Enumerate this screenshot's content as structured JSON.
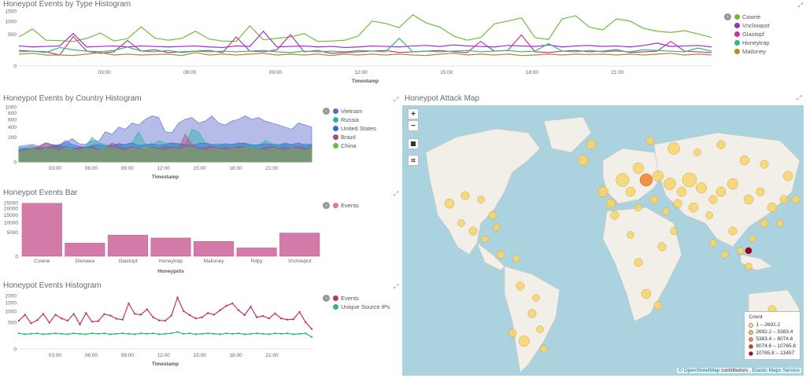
{
  "panels": {
    "type_hist": {
      "title": "Honeypot Events by Type Histogram"
    },
    "country_hist": {
      "title": "Honeypot Events by Country Histogram"
    },
    "bar": {
      "title": "Honeypot Events Bar"
    },
    "events_hist": {
      "title": "Honeypot Events Histogram"
    },
    "map": {
      "title": "Honeypot Attack Map"
    }
  },
  "map": {
    "zoom_in": "+",
    "zoom_out": "−",
    "legend_title": "Count",
    "legend": [
      {
        "label": "1 – 2692.2",
        "color": "#fde68a"
      },
      {
        "label": "2692.2 – 5383.4",
        "color": "#fbbf5e"
      },
      {
        "label": "5383.4 – 8074.6",
        "color": "#f08a3c"
      },
      {
        "label": "8074.6 – 10765.8",
        "color": "#d73027"
      },
      {
        "label": "10765.8 – 13457",
        "color": "#a50026"
      }
    ],
    "attribution_link": "© OpenStreetMap",
    "attribution_text": " contributors , ",
    "attribution_link2": "Elastic Maps Service"
  },
  "chart_data": [
    {
      "id": "type_hist",
      "type": "line",
      "title": "Honeypot Events by Type Histogram",
      "xlabel": "Timestamp",
      "ylabel": "",
      "y_scale": "sqrt",
      "ylim": [
        0,
        1500
      ],
      "yticks": [
        "1500",
        "1000",
        "500",
        "0"
      ],
      "x_ticks": [
        "03:00",
        "06:00",
        "09:00",
        "12:00",
        "15:00",
        "18:00",
        "21:00"
      ],
      "series": [
        {
          "name": "Cowrie",
          "color": "#6cbd3c",
          "values": [
            420,
            680,
            330,
            320,
            300,
            380,
            540,
            310,
            370,
            760,
            390,
            330,
            380,
            600,
            360,
            310,
            300,
            800,
            340,
            380,
            420,
            520,
            300,
            310,
            330,
            450,
            1000,
            900,
            730,
            1300,
            920,
            750,
            450,
            330,
            400,
            880,
            1000,
            1150,
            400,
            350,
            1100,
            1250,
            750,
            650,
            1100,
            1000,
            700,
            600,
            560,
            620,
            510,
            400
          ]
        },
        {
          "name": "Vnclowpot",
          "color": "#9a2fc0",
          "values": [
            200,
            180,
            190,
            200,
            520,
            180,
            190,
            200,
            180,
            200,
            190,
            180,
            190,
            200,
            180,
            170,
            200,
            190,
            600,
            180,
            190,
            200,
            180,
            190,
            170,
            180,
            200,
            190,
            180,
            200,
            210,
            190,
            220,
            200,
            190,
            180,
            210,
            200,
            190,
            220,
            180,
            200,
            210,
            190,
            200,
            180,
            210,
            260,
            190,
            200,
            210,
            180
          ]
        },
        {
          "name": "Glastopf",
          "color": "#c13795",
          "values": [
            120,
            110,
            100,
            60,
            430,
            110,
            80,
            100,
            320,
            110,
            130,
            90,
            100,
            110,
            120,
            90,
            420,
            110,
            100,
            130,
            490,
            100,
            120,
            80,
            90,
            100,
            110,
            120,
            90,
            100,
            110,
            120,
            100,
            90,
            300,
            110,
            120,
            480,
            100,
            90,
            110,
            120,
            100,
            110,
            130,
            90,
            100,
            110,
            300,
            110,
            100,
            90
          ]
        },
        {
          "name": "Honeytrap",
          "color": "#2fb77d",
          "values": [
            100,
            110,
            90,
            170,
            130,
            110,
            100,
            120,
            180,
            110,
            100,
            120,
            90,
            110,
            100,
            110,
            100,
            110,
            120,
            100,
            90,
            110,
            100,
            110,
            100,
            120,
            110,
            100,
            380,
            100,
            110,
            100,
            110,
            120,
            100,
            110,
            120,
            100,
            110,
            250,
            110,
            100,
            120,
            100,
            110,
            100,
            130,
            120,
            110,
            100,
            160,
            110
          ]
        },
        {
          "name": "Mailoney",
          "color": "#b5892a",
          "values": [
            70,
            80,
            60,
            60,
            55,
            70,
            90,
            60,
            70,
            60,
            65,
            70,
            55,
            90,
            60,
            70,
            60,
            70,
            80,
            60,
            70,
            60,
            70,
            55,
            70,
            60,
            70,
            60,
            70,
            60,
            55,
            70,
            80,
            60,
            70,
            60,
            70,
            55,
            60,
            70,
            60,
            70,
            65,
            70,
            60,
            70,
            60,
            70,
            80,
            60,
            70,
            60
          ]
        }
      ]
    },
    {
      "id": "country_hist",
      "type": "area",
      "title": "Honeypot Events by Country Histogram",
      "xlabel": "Timestamp",
      "ylabel": "",
      "y_scale": "sqrt",
      "ylim": [
        0,
        1000
      ],
      "yticks": [
        "1000",
        "800",
        "600",
        "400",
        "200",
        "0"
      ],
      "x_ticks": [
        "03:00",
        "06:00",
        "09:00",
        "12:00",
        "15:00",
        "18:00",
        "21:00"
      ],
      "series": [
        {
          "name": "Vietnam",
          "color": "#5a6bc9",
          "values": [
            80,
            90,
            100,
            80,
            120,
            100,
            90,
            120,
            180,
            110,
            100,
            150,
            140,
            300,
            250,
            400,
            350,
            500,
            450,
            600,
            700,
            650,
            300,
            280,
            500,
            600,
            650,
            500,
            550,
            700,
            500,
            450,
            550,
            600,
            700,
            600,
            650,
            550,
            500,
            450,
            400,
            350,
            500,
            450,
            400
          ]
        },
        {
          "name": "Russia",
          "color": "#2bb3a6",
          "values": [
            60,
            70,
            80,
            60,
            70,
            90,
            100,
            80,
            70,
            60,
            80,
            200,
            120,
            100,
            90,
            110,
            100,
            120,
            300,
            100,
            90,
            150,
            120,
            110,
            100,
            90,
            350,
            300,
            120,
            100,
            110,
            90,
            100,
            110,
            120,
            100,
            90,
            150,
            110,
            100,
            120,
            100,
            90,
            110,
            100
          ]
        },
        {
          "name": "United States",
          "color": "#2f6bd6",
          "values": [
            50,
            60,
            50,
            70,
            60,
            80,
            90,
            150,
            100,
            80,
            70,
            90,
            100,
            80,
            90,
            110,
            100,
            120,
            90,
            100,
            110,
            90,
            100,
            120,
            110,
            100,
            90,
            110,
            120,
            100,
            90,
            110,
            100,
            120,
            110,
            90,
            100,
            110,
            100,
            90,
            110,
            100,
            120,
            90,
            100
          ]
        },
        {
          "name": "Brazil",
          "color": "#b5447a",
          "values": [
            40,
            50,
            60,
            80,
            120,
            100,
            80,
            60,
            50,
            70,
            60,
            80,
            50,
            60,
            120,
            80,
            60,
            70,
            60,
            50,
            70,
            60,
            80,
            70,
            60,
            250,
            100,
            60,
            70,
            80,
            60,
            70,
            60,
            80,
            70,
            60,
            50,
            70,
            80,
            60,
            70,
            60,
            80,
            60,
            70
          ]
        },
        {
          "name": "China",
          "color": "#6cbd3c",
          "values": [
            30,
            40,
            50,
            40,
            60,
            50,
            40,
            60,
            50,
            40,
            60,
            50,
            40,
            70,
            60,
            50,
            40,
            60,
            50,
            70,
            60,
            50,
            40,
            60,
            50,
            60,
            70,
            50,
            40,
            60,
            50,
            40,
            60,
            50,
            70,
            60,
            50,
            40,
            60,
            50,
            40,
            60,
            50,
            40,
            60
          ]
        }
      ]
    },
    {
      "id": "bar",
      "type": "bar",
      "title": "Honeypot Events Bar",
      "xlabel": "Honeypots",
      "ylabel": "",
      "y_scale": "sqrt",
      "ylim": [
        0,
        25000
      ],
      "yticks": [
        "25000",
        "20000",
        "15000",
        "10000",
        "5000",
        "0"
      ],
      "categories": [
        "Cowrie",
        "Dionaea",
        "Glastopf",
        "Honeytrap",
        "Mailoney",
        "Rdpy",
        "Vnclowpot"
      ],
      "series": [
        {
          "name": "Events",
          "color": "#d47aa8",
          "values": [
            24500,
            1500,
            3900,
            2900,
            1900,
            600,
            4700
          ]
        }
      ]
    },
    {
      "id": "events_hist",
      "type": "line",
      "title": "Honeypot Events Histogram",
      "xlabel": "Timestamp",
      "ylabel": "",
      "y_scale": "sqrt",
      "ylim": [
        0,
        2000
      ],
      "yticks": [
        "2000",
        "1500",
        "1000",
        "500",
        "0"
      ],
      "x_ticks": [
        "03:00",
        "06:00",
        "09:00",
        "12:00",
        "15:00",
        "18:00",
        "21:00"
      ],
      "series": [
        {
          "name": "Events",
          "color": "#c2306b",
          "values": [
            560,
            820,
            460,
            580,
            860,
            480,
            820,
            650,
            560,
            860,
            420,
            900,
            520,
            540,
            850,
            780,
            640,
            600,
            1450,
            860,
            820,
            1100,
            700,
            570,
            560,
            780,
            1850,
            1000,
            800,
            650,
            700,
            900,
            820,
            1050,
            1300,
            1450,
            1050,
            800,
            1250,
            700,
            760,
            650,
            880,
            650,
            600,
            620,
            960,
            500,
            280
          ]
        },
        {
          "name": "Unique Source IPs",
          "color": "#2fb77d",
          "values": [
            170,
            150,
            160,
            170,
            150,
            160,
            170,
            160,
            150,
            170,
            160,
            150,
            170,
            160,
            170,
            150,
            160,
            170,
            160,
            150,
            170,
            160,
            170,
            150,
            160,
            170,
            200,
            160,
            170,
            150,
            160,
            170,
            160,
            150,
            170,
            160,
            170,
            150,
            160,
            170,
            160,
            150,
            170,
            160,
            170,
            150,
            160,
            170,
            100
          ]
        }
      ]
    }
  ]
}
